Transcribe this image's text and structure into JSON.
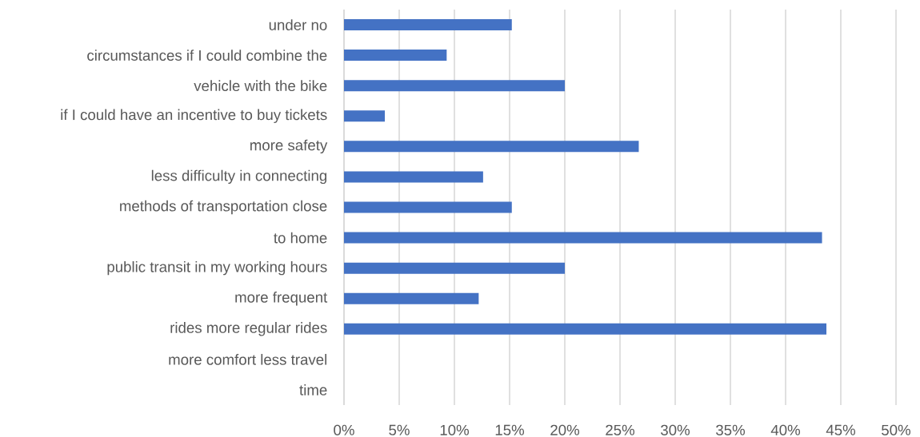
{
  "chart_data": {
    "type": "bar",
    "orientation": "horizontal",
    "color": "#4472c4",
    "categories": [
      "under no",
      "circumstances if I could combine the",
      "vehicle with the bike",
      "if I could have an incentive to buy tickets",
      "more safety",
      "less difficulty in connecting",
      "methods of transportation close",
      "to home",
      "public transit in my working hours",
      "more frequent",
      "rides more regular rides",
      "more comfort less travel",
      "time"
    ],
    "values": [
      15.2,
      9.3,
      20.0,
      3.7,
      26.7,
      12.6,
      15.2,
      43.3,
      20.0,
      12.2,
      43.7,
      null,
      null
    ],
    "xlim": [
      0,
      50
    ],
    "xticks": [
      {
        "value": 0,
        "label": "0%"
      },
      {
        "value": 5,
        "label": "5%"
      },
      {
        "value": 10,
        "label": "10%"
      },
      {
        "value": 15,
        "label": "15%"
      },
      {
        "value": 20,
        "label": "20%"
      },
      {
        "value": 25,
        "label": "25%"
      },
      {
        "value": 30,
        "label": "30%"
      },
      {
        "value": 35,
        "label": "35%"
      },
      {
        "value": 40,
        "label": "40%"
      },
      {
        "value": 45,
        "label": "45%"
      },
      {
        "value": 50,
        "label": "50%"
      }
    ],
    "grid": "x"
  }
}
